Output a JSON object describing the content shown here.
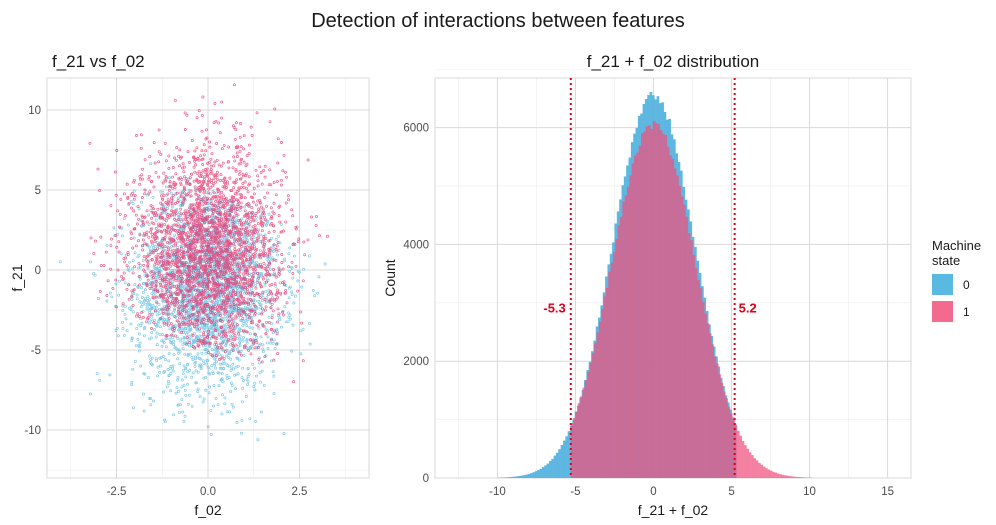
{
  "title": "Detection of interactions between features",
  "colors": {
    "state0": "#56B4E0",
    "state1": "#F0517D",
    "overlap": "#B8507E",
    "annot": "#E0001B",
    "grid": "#D9D9D9"
  },
  "legend": {
    "title_line1": "Machine",
    "title_line2": "state",
    "items": [
      {
        "label": "0",
        "color": "#5AB9E0"
      },
      {
        "label": "1",
        "color": "#F4698E"
      }
    ]
  },
  "chart_data": [
    {
      "type": "scatter",
      "title": "f_21 vs f_02",
      "xlabel": "f_02",
      "ylabel": "f_21",
      "xlim": [
        -4.4,
        4.4
      ],
      "ylim": [
        -13,
        12
      ],
      "x_ticks": [
        -2.5,
        0.0,
        2.5
      ],
      "x_tick_labels": [
        "-2.5",
        "0.0",
        "2.5"
      ],
      "y_ticks": [
        -10,
        -5,
        0,
        5,
        10
      ],
      "y_tick_labels": [
        "-10",
        "-5",
        "0",
        "5",
        "10"
      ],
      "grid": true,
      "series": [
        {
          "name": "0",
          "color": "#5AB9E0",
          "center": [
            0.0,
            -1.0
          ],
          "x_sd": 1.0,
          "y_sd": 3.2,
          "separating_line": "f_21 + f_02 < 5.2"
        },
        {
          "name": "1",
          "color": "#E8306A",
          "center": [
            0.0,
            1.0
          ],
          "x_sd": 1.0,
          "y_sd": 3.2,
          "separating_line": "f_21 + f_02 > -5.3"
        }
      ]
    },
    {
      "type": "histogram",
      "title": "f_21 + f_02 distribution",
      "xlabel": "f_21 + f_02",
      "ylabel": "Count",
      "xlim": [
        -14,
        16.5
      ],
      "ylim": [
        0,
        6850
      ],
      "x_ticks": [
        -10,
        -5,
        0,
        5,
        10,
        15
      ],
      "x_tick_labels": [
        "-10",
        "-5",
        "0",
        "5",
        "10",
        "15"
      ],
      "y_ticks": [
        0,
        2000,
        4000,
        6000
      ],
      "y_tick_labels": [
        "0",
        "2000",
        "4000",
        "6000"
      ],
      "grid": true,
      "series": [
        {
          "name": "0",
          "color": "#56B4E0",
          "peak": 6550,
          "sd": 2.65,
          "range": [
            -10.0,
            5.2
          ]
        },
        {
          "name": "1",
          "color": "#F0517D",
          "peak": 6050,
          "sd": 2.7,
          "range": [
            -5.3,
            10.5
          ]
        }
      ],
      "thresholds": [
        {
          "x": -5.3,
          "label": "-5.3"
        },
        {
          "x": 5.2,
          "label": "5.2"
        }
      ]
    }
  ]
}
